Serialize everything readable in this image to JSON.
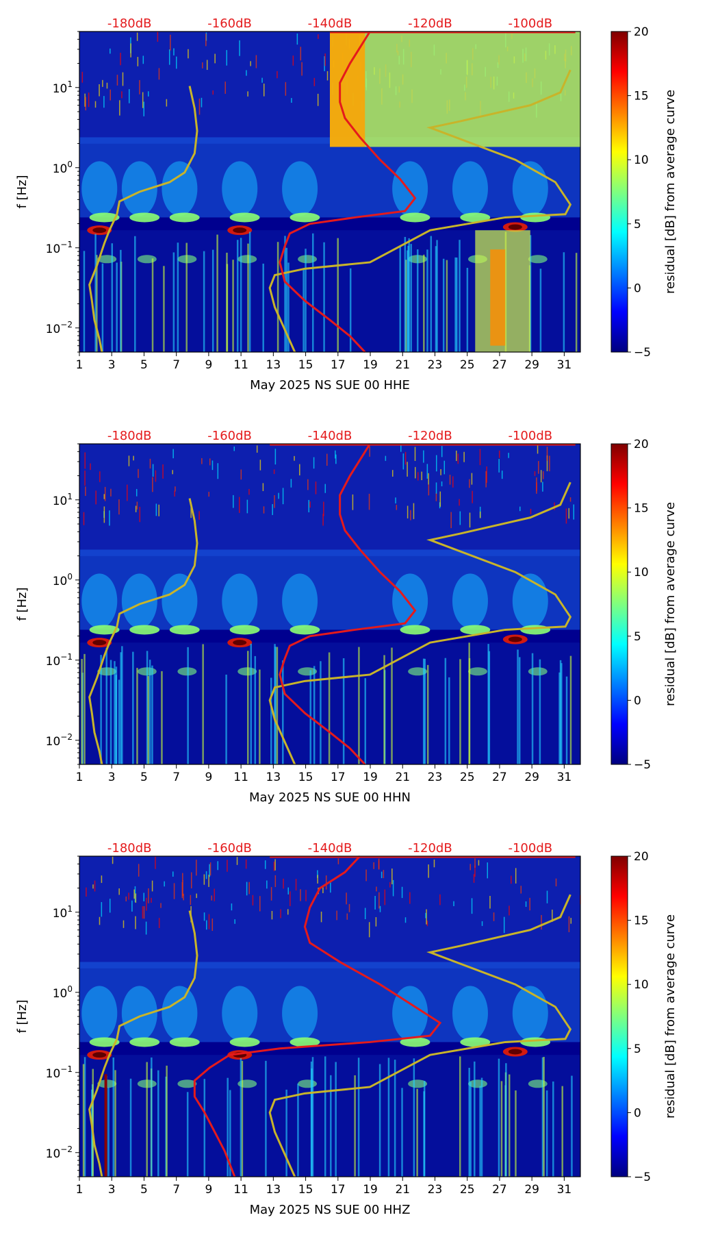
{
  "colors": {
    "noise_model": "#c8b42a",
    "median_curve": "#e41a1c",
    "top_axis_text": "#e41a1c",
    "colormap": [
      "#00007f",
      "#0000ff",
      "#007fff",
      "#00ffff",
      "#7fff7f",
      "#ffff00",
      "#ff7f00",
      "#ff0000",
      "#7f0000"
    ]
  },
  "chart_data": [
    {
      "type": "heatmap",
      "channel": "HHE",
      "xlabel": "May 2025 NS SUE 00 HHE",
      "ylabel": "f [Hz]",
      "x_ticks": [
        "1",
        "3",
        "5",
        "7",
        "9",
        "11",
        "13",
        "15",
        "17",
        "19",
        "21",
        "23",
        "25",
        "27",
        "29",
        "31"
      ],
      "x_range": [
        1,
        32
      ],
      "y_scale": "log",
      "y_range": [
        0.005,
        50
      ],
      "y_ticks": [
        {
          "base": "10",
          "exp": "1"
        },
        {
          "base": "10",
          "exp": "0"
        },
        {
          "base": "10",
          "exp": "−1"
        },
        {
          "base": "10",
          "exp": "−2"
        }
      ],
      "top_axis_labels": [
        "-180dB",
        "-160dB",
        "-140dB",
        "-120dB",
        "-100dB"
      ],
      "colorbar": {
        "label": "residual [dB] from average curve",
        "ticks": [
          "20",
          "15",
          "10",
          "5",
          "0",
          "−5"
        ],
        "range": [
          -5,
          20
        ]
      }
    },
    {
      "type": "heatmap",
      "channel": "HHN",
      "xlabel": "May 2025 NS SUE 00 HHN",
      "ylabel": "f [Hz]",
      "x_ticks": [
        "1",
        "3",
        "5",
        "7",
        "9",
        "11",
        "13",
        "15",
        "17",
        "19",
        "21",
        "23",
        "25",
        "27",
        "29",
        "31"
      ],
      "x_range": [
        1,
        32
      ],
      "y_scale": "log",
      "y_range": [
        0.005,
        50
      ],
      "y_ticks": [
        {
          "base": "10",
          "exp": "1"
        },
        {
          "base": "10",
          "exp": "0"
        },
        {
          "base": "10",
          "exp": "−1"
        },
        {
          "base": "10",
          "exp": "−2"
        }
      ],
      "top_axis_labels": [
        "-180dB",
        "-160dB",
        "-140dB",
        "-120dB",
        "-100dB"
      ],
      "colorbar": {
        "label": "residual [dB] from average curve",
        "ticks": [
          "20",
          "15",
          "10",
          "5",
          "0",
          "−5"
        ],
        "range": [
          -5,
          20
        ]
      }
    },
    {
      "type": "heatmap",
      "channel": "HHZ",
      "xlabel": "May 2025 NS SUE 00 HHZ",
      "ylabel": "f [Hz]",
      "x_ticks": [
        "1",
        "3",
        "5",
        "7",
        "9",
        "11",
        "13",
        "15",
        "17",
        "19",
        "21",
        "23",
        "25",
        "27",
        "29",
        "31"
      ],
      "x_range": [
        1,
        32
      ],
      "y_scale": "log",
      "y_range": [
        0.005,
        50
      ],
      "y_ticks": [
        {
          "base": "10",
          "exp": "1"
        },
        {
          "base": "10",
          "exp": "0"
        },
        {
          "base": "10",
          "exp": "−1"
        },
        {
          "base": "10",
          "exp": "−2"
        }
      ],
      "top_axis_labels": [
        "-180dB",
        "-160dB",
        "-140dB",
        "-120dB",
        "-100dB"
      ],
      "colorbar": {
        "label": "residual [dB] from average curve",
        "ticks": [
          "20",
          "15",
          "10",
          "5",
          "0",
          "−5"
        ],
        "range": [
          -5,
          20
        ]
      }
    }
  ]
}
